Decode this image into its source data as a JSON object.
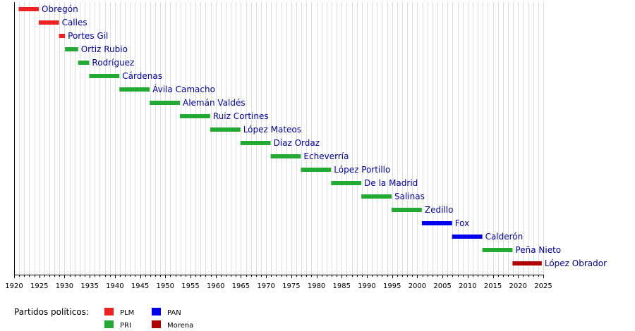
{
  "chart_data": {
    "type": "bar",
    "orientation": "horizontal-timeline",
    "title": "",
    "xlabel": "",
    "ylabel": "",
    "xlim": [
      1920,
      2025
    ],
    "x_ticks": [
      1920,
      1925,
      1930,
      1935,
      1940,
      1945,
      1950,
      1955,
      1960,
      1965,
      1970,
      1975,
      1980,
      1985,
      1990,
      1995,
      2000,
      2005,
      2010,
      2015,
      2020,
      2025
    ],
    "grid": true,
    "legend_placement": "bottom-left",
    "parties": [
      {
        "key": "PLM",
        "label": "PLM",
        "color": "#ee2222"
      },
      {
        "key": "PAN",
        "label": "PAN",
        "color": "#0000ee"
      },
      {
        "key": "PRI",
        "label": "PRI",
        "color": "#22aa33"
      },
      {
        "key": "Morena",
        "label": "Morena",
        "color": "#b00000"
      }
    ],
    "series": [
      {
        "name": "Obregón",
        "party": "PLM",
        "start": 1920.9,
        "end": 1924.9
      },
      {
        "name": "Calles",
        "party": "PLM",
        "start": 1924.9,
        "end": 1928.9
      },
      {
        "name": "Portes Gil",
        "party": "PLM",
        "start": 1928.9,
        "end": 1930.1
      },
      {
        "name": "Ortiz Rubio",
        "party": "PRI",
        "start": 1930.1,
        "end": 1932.7
      },
      {
        "name": "Rodríguez",
        "party": "PRI",
        "start": 1932.7,
        "end": 1934.9
      },
      {
        "name": "Cárdenas",
        "party": "PRI",
        "start": 1934.9,
        "end": 1940.9
      },
      {
        "name": "Ávila Camacho",
        "party": "PRI",
        "start": 1940.9,
        "end": 1946.9
      },
      {
        "name": "Alemán Valdés",
        "party": "PRI",
        "start": 1946.9,
        "end": 1952.9
      },
      {
        "name": "Ruiz Cortines",
        "party": "PRI",
        "start": 1952.9,
        "end": 1958.9
      },
      {
        "name": "López Mateos",
        "party": "PRI",
        "start": 1958.9,
        "end": 1964.9
      },
      {
        "name": "Díaz Ordaz",
        "party": "PRI",
        "start": 1964.9,
        "end": 1970.9
      },
      {
        "name": "Echeverría",
        "party": "PRI",
        "start": 1970.9,
        "end": 1976.9
      },
      {
        "name": "López Portillo",
        "party": "PRI",
        "start": 1976.9,
        "end": 1982.9
      },
      {
        "name": "De la Madrid",
        "party": "PRI",
        "start": 1982.9,
        "end": 1988.9
      },
      {
        "name": "Salinas",
        "party": "PRI",
        "start": 1988.9,
        "end": 1994.9
      },
      {
        "name": "Zedillo",
        "party": "PRI",
        "start": 1994.9,
        "end": 2000.9
      },
      {
        "name": "Fox",
        "party": "PAN",
        "start": 2000.9,
        "end": 2006.9
      },
      {
        "name": "Calderón",
        "party": "PAN",
        "start": 2006.9,
        "end": 2012.9
      },
      {
        "name": "Peña Nieto",
        "party": "PRI",
        "start": 2012.9,
        "end": 2018.9
      },
      {
        "name": "López Obrador",
        "party": "Morena",
        "start": 2018.9,
        "end": 2024.7
      }
    ]
  },
  "legend": {
    "title": "Partidos políticos:"
  }
}
